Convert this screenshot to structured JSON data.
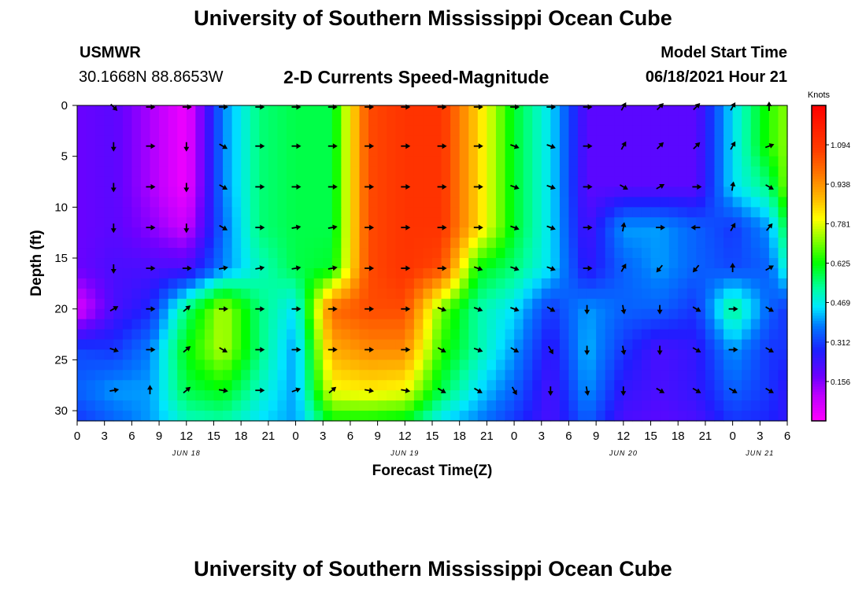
{
  "page": {
    "title": "University of Southern Mississippi Ocean Cube",
    "footer_title": "University of Southern Mississippi Ocean Cube"
  },
  "station": {
    "name": "USMWR",
    "coords": "30.1668N  88.8653W"
  },
  "plot_title": "2-D Currents Speed-Magnitude",
  "model": {
    "label": "Model Start Time",
    "value": "06/18/2021 Hour 21"
  },
  "chart_data": {
    "type": "heatmap",
    "xlabel": "Forecast Time(Z)",
    "ylabel": "Depth (ft)",
    "x_range_hours": [
      0,
      78
    ],
    "ylim": [
      0,
      31
    ],
    "y_ticks": [
      "0",
      "5",
      "10",
      "15",
      "20",
      "25",
      "30"
    ],
    "x_ticks": [
      "0",
      "3",
      "6",
      "9",
      "12",
      "15",
      "18",
      "21",
      "0",
      "3",
      "6",
      "9",
      "12",
      "15",
      "18",
      "21",
      "0",
      "3",
      "6",
      "9",
      "12",
      "15",
      "18",
      "21",
      "0",
      "3",
      "6"
    ],
    "day_labels": [
      {
        "label": "JUN 18",
        "hour": 12
      },
      {
        "label": "JUN 19",
        "hour": 36
      },
      {
        "label": "JUN 20",
        "hour": 60
      },
      {
        "label": "JUN 21",
        "hour": 75
      }
    ],
    "colorbar": {
      "unit": "Knots",
      "range": [
        0,
        1.25
      ],
      "tick_values": [
        1.094,
        0.938,
        0.781,
        0.625,
        0.469,
        0.312,
        0.156
      ],
      "tick_labels": [
        "1.094",
        "0.938",
        "0.781",
        "0.625",
        "0.469",
        "0.312",
        "0.156"
      ]
    },
    "speed_field": {
      "hours": [
        0,
        4,
        8,
        12,
        16,
        20,
        24,
        28,
        32,
        36,
        40,
        44,
        48,
        52,
        56,
        60,
        64,
        68,
        72,
        76,
        78
      ],
      "depths": [
        0,
        4,
        8,
        12,
        16,
        20,
        24,
        28,
        31
      ],
      "values": [
        [
          0.18,
          0.2,
          0.12,
          0.02,
          0.38,
          0.55,
          0.58,
          0.58,
          1.05,
          1.1,
          1.1,
          0.85,
          0.6,
          0.45,
          0.2,
          0.2,
          0.2,
          0.2,
          0.45,
          0.65,
          0.72
        ],
        [
          0.18,
          0.2,
          0.12,
          0.02,
          0.38,
          0.55,
          0.58,
          0.58,
          1.05,
          1.1,
          1.1,
          0.85,
          0.6,
          0.45,
          0.2,
          0.2,
          0.2,
          0.2,
          0.45,
          0.65,
          0.72
        ],
        [
          0.18,
          0.2,
          0.12,
          0.02,
          0.38,
          0.55,
          0.58,
          0.58,
          1.05,
          1.1,
          1.1,
          0.85,
          0.6,
          0.45,
          0.2,
          0.2,
          0.2,
          0.2,
          0.45,
          0.55,
          0.72
        ],
        [
          0.18,
          0.2,
          0.15,
          0.08,
          0.36,
          0.55,
          0.58,
          0.58,
          1.05,
          1.1,
          1.1,
          0.85,
          0.6,
          0.45,
          0.22,
          0.4,
          0.4,
          0.35,
          0.3,
          0.4,
          0.6
        ],
        [
          0.18,
          0.22,
          0.22,
          0.22,
          0.38,
          0.5,
          0.58,
          0.6,
          1.05,
          1.1,
          1.05,
          0.62,
          0.55,
          0.45,
          0.25,
          0.35,
          0.4,
          0.35,
          0.32,
          0.35,
          0.5
        ],
        [
          0.05,
          0.22,
          0.28,
          0.55,
          0.75,
          0.55,
          0.45,
          1.0,
          1.05,
          1.05,
          0.7,
          0.52,
          0.45,
          0.3,
          0.4,
          0.35,
          0.35,
          0.3,
          0.55,
          0.35,
          0.3
        ],
        [
          0.32,
          0.3,
          0.38,
          0.62,
          0.75,
          0.55,
          0.4,
          0.9,
          0.95,
          0.95,
          0.65,
          0.52,
          0.4,
          0.25,
          0.42,
          0.3,
          0.22,
          0.25,
          0.4,
          0.3,
          0.3
        ],
        [
          0.35,
          0.4,
          0.4,
          0.58,
          0.62,
          0.5,
          0.4,
          0.8,
          0.82,
          0.8,
          0.58,
          0.45,
          0.35,
          0.22,
          0.4,
          0.25,
          0.22,
          0.25,
          0.35,
          0.3,
          0.25
        ],
        [
          0.3,
          0.35,
          0.4,
          0.5,
          0.52,
          0.45,
          0.4,
          0.62,
          0.62,
          0.6,
          0.45,
          0.38,
          0.3,
          0.22,
          0.35,
          0.22,
          0.2,
          0.22,
          0.3,
          0.28,
          0.25
        ]
      ]
    },
    "vectors": {
      "hours": [
        4,
        8,
        12,
        16,
        20,
        24,
        28,
        32,
        36,
        40,
        44,
        48,
        52,
        56,
        60,
        64,
        68,
        72,
        76
      ],
      "depths": [
        0,
        4,
        8,
        12,
        16,
        20,
        24,
        28
      ],
      "angles_deg": [
        [
          315,
          0,
          0,
          0,
          0,
          0,
          0,
          0,
          0,
          0,
          0,
          0,
          0,
          0,
          60,
          45,
          45,
          60,
          90
        ],
        [
          270,
          0,
          270,
          330,
          0,
          0,
          0,
          0,
          0,
          0,
          0,
          340,
          340,
          0,
          60,
          45,
          45,
          60,
          20
        ],
        [
          270,
          0,
          270,
          330,
          0,
          0,
          0,
          0,
          0,
          0,
          0,
          340,
          340,
          0,
          330,
          30,
          0,
          80,
          330
        ],
        [
          270,
          0,
          270,
          330,
          0,
          10,
          10,
          0,
          0,
          0,
          0,
          340,
          340,
          0,
          80,
          0,
          180,
          60,
          50
        ],
        [
          270,
          0,
          0,
          10,
          10,
          10,
          10,
          0,
          0,
          0,
          340,
          340,
          340,
          0,
          60,
          230,
          230,
          90,
          30
        ],
        [
          30,
          0,
          40,
          0,
          0,
          0,
          0,
          0,
          0,
          340,
          340,
          340,
          330,
          270,
          280,
          270,
          330,
          0,
          330
        ],
        [
          340,
          0,
          40,
          330,
          0,
          0,
          0,
          0,
          0,
          330,
          340,
          330,
          300,
          270,
          280,
          270,
          330,
          0,
          330
        ],
        [
          10,
          90,
          40,
          350,
          0,
          20,
          40,
          350,
          350,
          330,
          330,
          300,
          270,
          280,
          270,
          330,
          330,
          330,
          330
        ]
      ]
    }
  }
}
